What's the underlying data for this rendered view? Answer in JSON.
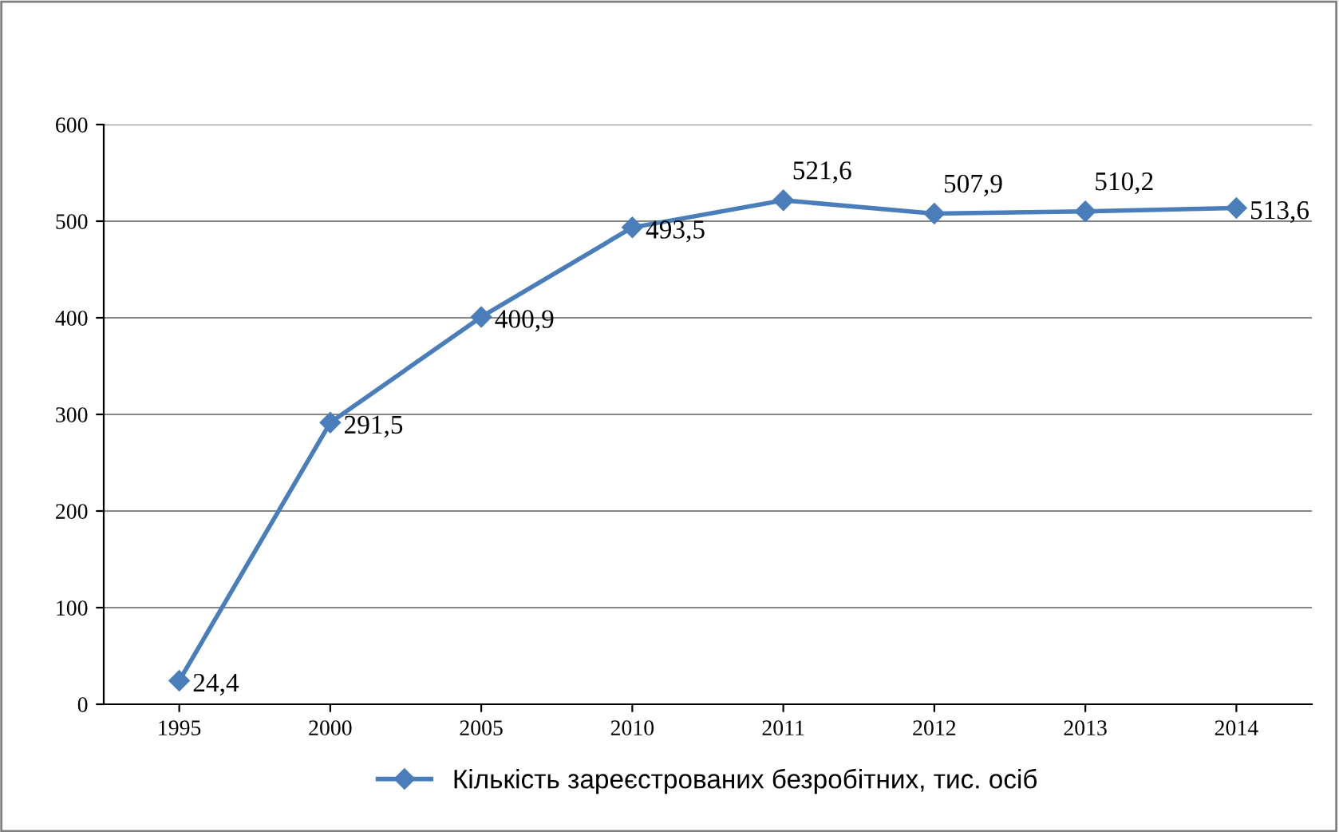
{
  "chart_data": {
    "type": "line",
    "categories": [
      "1995",
      "2000",
      "2005",
      "2010",
      "2011",
      "2012",
      "2013",
      "2014"
    ],
    "series": [
      {
        "name": "Кількість зареєстрованих безробітних, тис. осіб",
        "color": "#4a7ebb",
        "values": [
          24.4,
          291.5,
          400.9,
          493.5,
          521.6,
          507.9,
          510.2,
          513.6
        ],
        "value_labels": [
          "24,4",
          "291,5",
          "400,9",
          "493,5",
          "521,6",
          "507,9",
          "510,2",
          "513,6"
        ]
      }
    ],
    "ylim": [
      0,
      600
    ],
    "yticks": [
      0,
      100,
      200,
      300,
      400,
      500,
      600
    ],
    "grid": "y",
    "legend": "bottom",
    "marker": "diamond",
    "line_style": "solid"
  }
}
